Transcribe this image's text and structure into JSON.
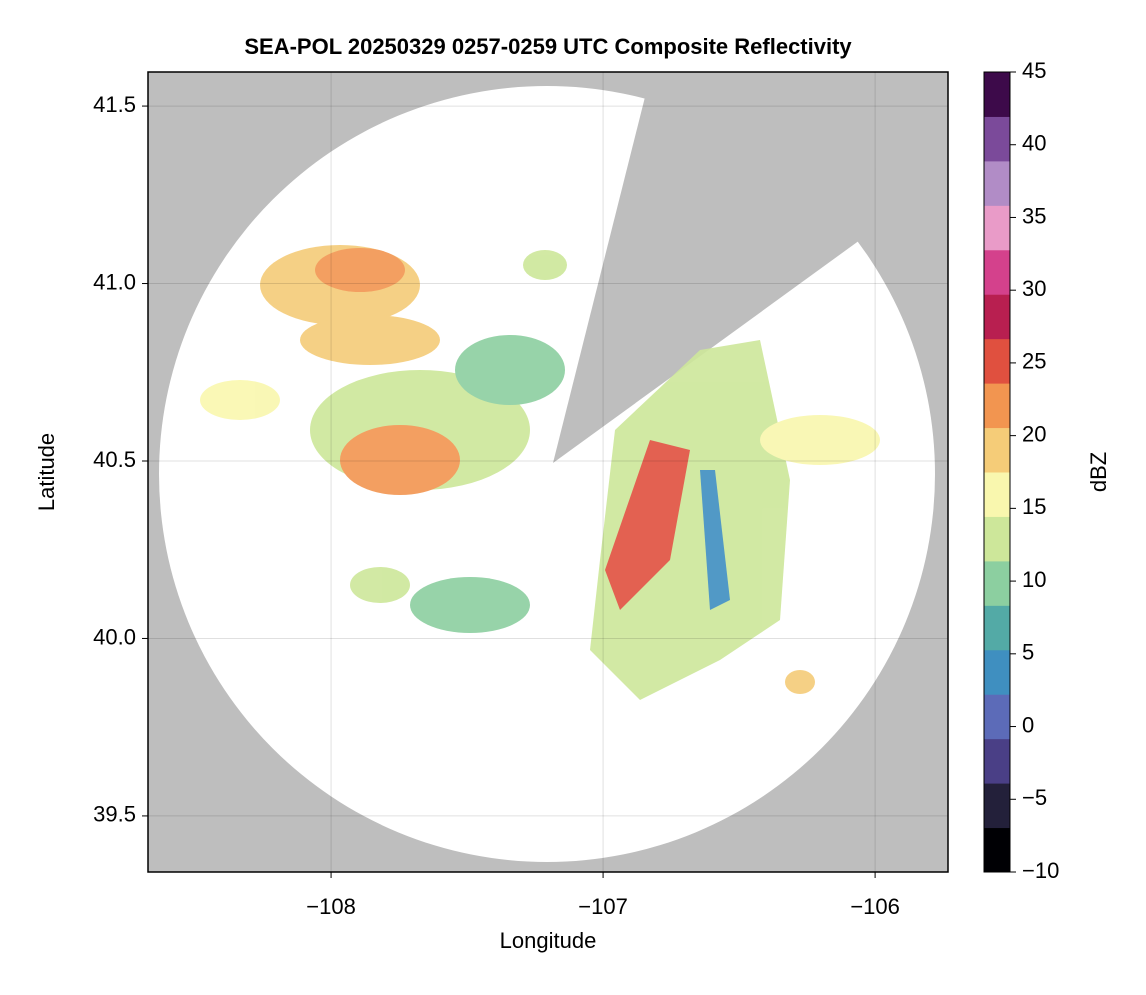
{
  "chart_data": {
    "type": "heatmap",
    "title": "SEA-POL 20250329 0257-0259 UTC Composite Reflectivity",
    "x_label": "Longitude",
    "y_label": "Latitude",
    "xlim": [
      -108.673,
      -105.732
    ],
    "ylim": [
      39.342,
      41.596
    ],
    "xticks": [
      {
        "value": -108,
        "label": "−108"
      },
      {
        "value": -107,
        "label": "−107"
      },
      {
        "value": -106,
        "label": "−106"
      }
    ],
    "yticks": [
      39.5,
      {
        "value": 40,
        "label": "40.0"
      },
      40.5,
      {
        "value": 41,
        "label": "41.0"
      },
      41.5
    ],
    "grid": true,
    "background": "#bebebe",
    "colorbar": {
      "label": "dBZ",
      "lim": [
        -10,
        45
      ],
      "ticks": [
        {
          "value": -10,
          "label": "−10"
        },
        {
          "value": -5,
          "label": "−5"
        },
        0,
        5,
        10,
        15,
        20,
        25,
        30,
        35,
        40,
        45
      ],
      "colors": [
        "#000004",
        "#23203a",
        "#4a3f86",
        "#5c6bb8",
        "#3f8fc0",
        "#53aaa6",
        "#8ccfa0",
        "#cde79a",
        "#f9f7ae",
        "#f5cc78",
        "#f29550",
        "#e0503f",
        "#b81f50",
        "#d4418c",
        "#e99bc8",
        "#b18cc6",
        "#7b4a9a",
        "#3d0a4a"
      ]
    }
  }
}
